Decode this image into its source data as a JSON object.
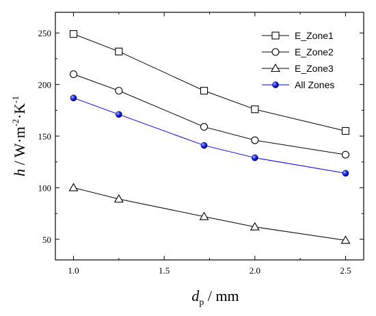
{
  "chart_data": {
    "type": "line",
    "xlabel": {
      "main": "d",
      "sub": "p",
      "unit": " / mm"
    },
    "ylabel": {
      "main": "h",
      "unit": " / W·m",
      "exp1": "-2",
      "mid": "·K",
      "exp2": "-1"
    },
    "xlim": [
      0.9,
      2.6
    ],
    "ylim": [
      30,
      270
    ],
    "xticks": [
      "1.0",
      "1.5",
      "2.0",
      "2.5"
    ],
    "yticks": [
      "50",
      "100",
      "150",
      "200",
      "250"
    ],
    "x": [
      1.0,
      1.25,
      1.72,
      2.0,
      2.5
    ],
    "legend_position": "top-right",
    "series": [
      {
        "name": "E_Zone1",
        "marker": "square",
        "color": "#000000",
        "values": [
          249,
          232,
          194,
          176,
          155
        ]
      },
      {
        "name": "E_Zone2",
        "marker": "circle",
        "color": "#000000",
        "values": [
          210,
          194,
          159,
          146,
          132
        ]
      },
      {
        "name": "E_Zone3",
        "marker": "triangle",
        "color": "#000000",
        "values": [
          100,
          89,
          72,
          62,
          49
        ]
      },
      {
        "name": "All Zones",
        "marker": "ball",
        "color": "#0000ff",
        "values": [
          187,
          171,
          141,
          129,
          114
        ]
      }
    ]
  }
}
